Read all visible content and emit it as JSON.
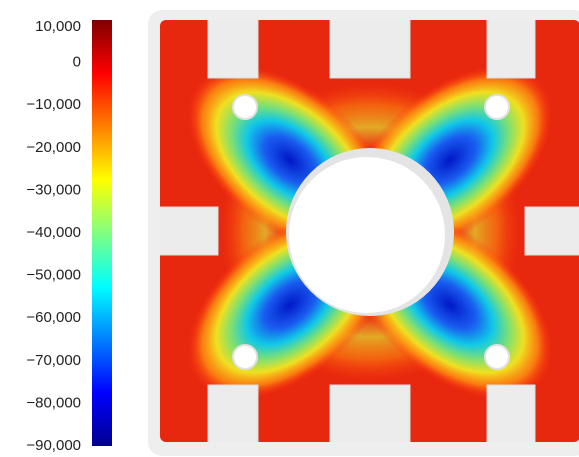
{
  "colorbar": {
    "lim": [
      -90000,
      10000
    ],
    "ticks": [
      {
        "value": 10000,
        "label": "10,000"
      },
      0,
      {
        "value": -10000,
        "label": "−10,000"
      },
      {
        "value": -20000,
        "label": "−20,000"
      },
      {
        "value": -30000,
        "label": "−30,000"
      },
      {
        "value": -40000,
        "label": "−40,000"
      },
      {
        "value": -50000,
        "label": "−50,000"
      },
      {
        "value": -60000,
        "label": "−60,000"
      },
      {
        "value": -70000,
        "label": "−70,000"
      },
      {
        "value": -80000,
        "label": "−80,000"
      },
      {
        "value": -90000,
        "label": "−90,000"
      }
    ],
    "colors": [
      "#7f0000",
      "#ff0000",
      "#ff8000",
      "#ffff00",
      "#80ff80",
      "#00ffff",
      "#0080ff",
      "#0000ff",
      "#00008f"
    ]
  }
}
